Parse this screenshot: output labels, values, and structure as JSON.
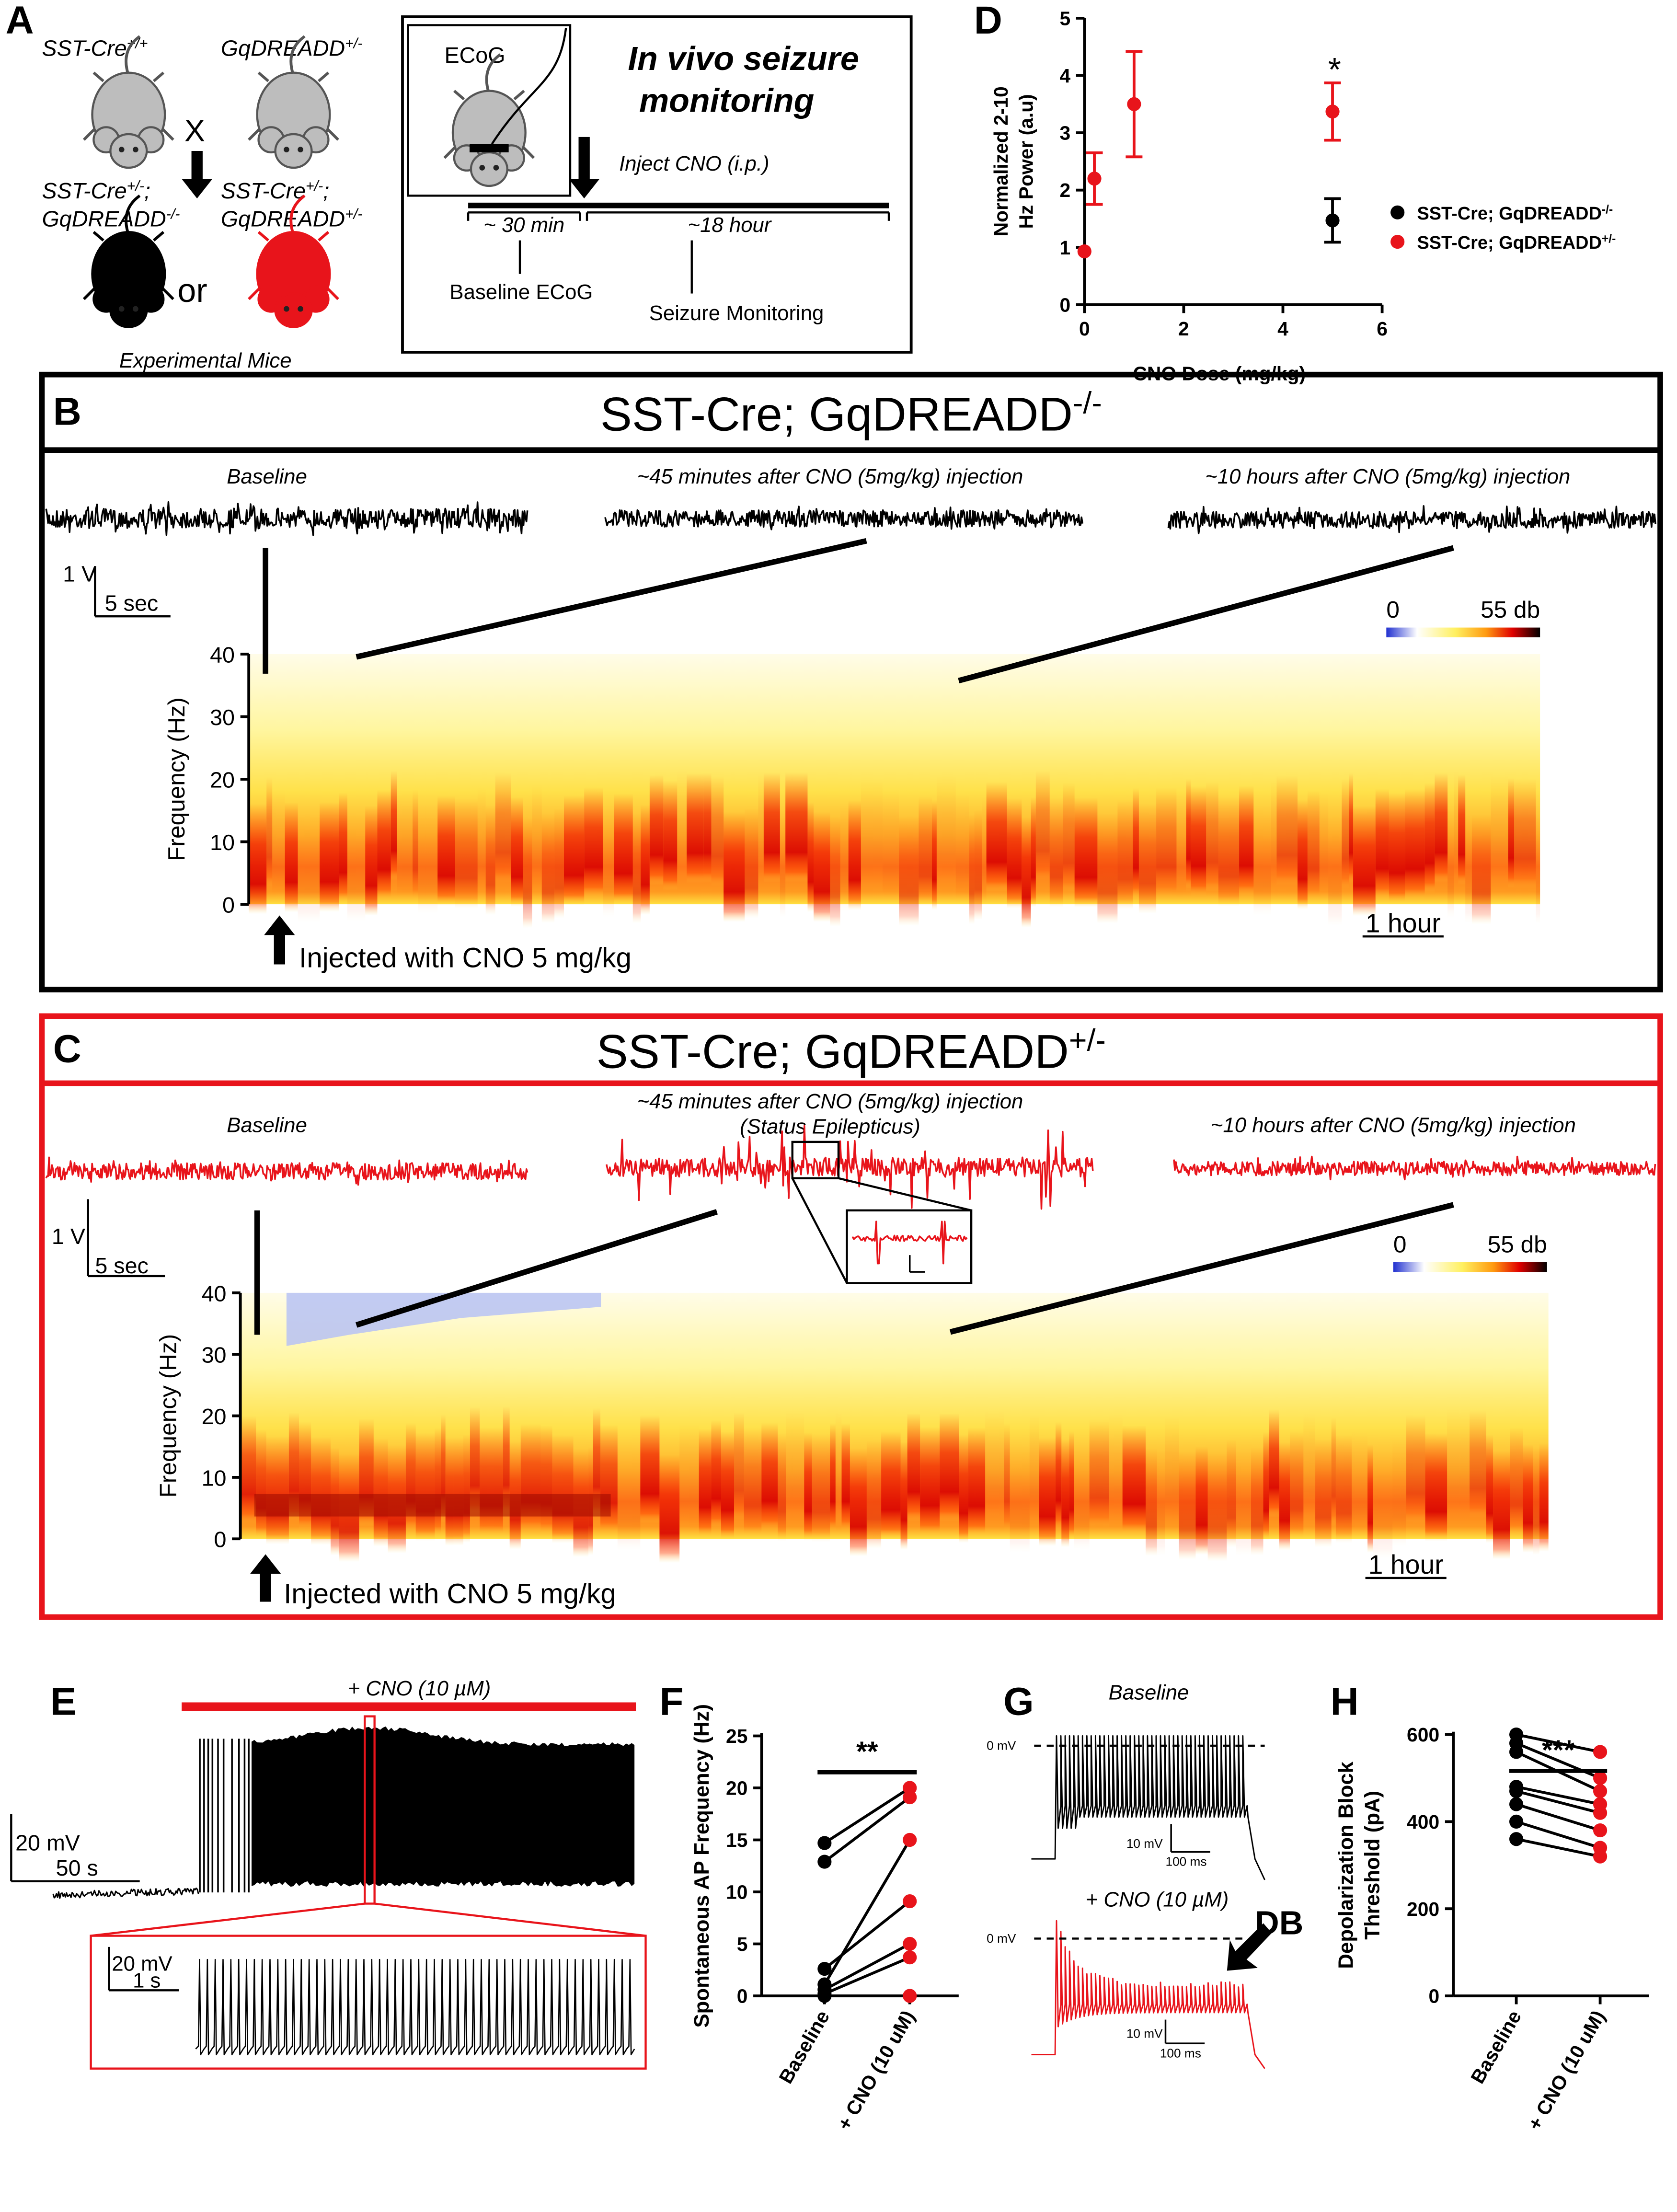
{
  "figure": {
    "letters": {
      "a": "A",
      "b": "B",
      "c": "C",
      "d": "D",
      "e": "E",
      "f": "F",
      "g": "G",
      "h": "H"
    },
    "a": {
      "parent1": [
        "SST-Cre",
        "+/+"
      ],
      "parent2": [
        "GqDREADD",
        "+/-"
      ],
      "cross": "X",
      "child1_line1": [
        "SST-Cre",
        "+/-",
        ";"
      ],
      "child1_line2": [
        "GqDREADD",
        "-/-"
      ],
      "child2_line1": [
        "SST-Cre",
        "+/-",
        ";"
      ],
      "child2_line2": [
        "GqDREADD",
        "+/-"
      ],
      "or": "or",
      "caption": "Experimental Mice",
      "ecog": "ECoG",
      "title_line1": "In vivo seizure",
      "title_line2": "monitoring",
      "inject": "Inject CNO (i.p.)",
      "baseline_duration": "~ 30 min",
      "monitor_duration": "~18 hour",
      "baseline_label": "Baseline ECoG",
      "monitor_label": "Seizure Monitoring"
    },
    "b": {
      "title": [
        "SST-Cre; GqDREADD",
        "-/-"
      ],
      "trace_labels": [
        "Baseline",
        "~45 minutes after CNO (5mg/kg) injection",
        "~10 hours after CNO (5mg/kg) injection"
      ],
      "voltage_scale": "1 V",
      "time_scale": "5 sec",
      "hour_scale": "1 hour",
      "injection": "Injected with CNO 5 mg/kg"
    },
    "c": {
      "title": [
        "SST-Cre; GqDREADD",
        "+/-"
      ],
      "trace_labels": [
        "Baseline",
        "~45 minutes after CNO (5mg/kg) injection",
        "~10 hours after CNO (5mg/kg) injection"
      ],
      "subtitle": "(Status Epilepticus)",
      "voltage_scale": "1 V",
      "time_scale": "5 sec",
      "hour_scale": "1 hour",
      "injection": "Injected with CNO 5 mg/kg"
    },
    "e": {
      "drug": "+ CNO (10 µM)",
      "v_scale": "20 mV",
      "t_scale": "50 s",
      "inset_v_scale": "20 mV",
      "inset_t_scale": "1 s"
    },
    "g": {
      "baseline": "Baseline",
      "drug": "+ CNO (10 µM)",
      "zero1": "0 mV",
      "zero2": "0 mV",
      "v1": "10 mV",
      "t1": "100 ms",
      "v2": "10 mV",
      "t2": "100 ms",
      "db": "DB"
    }
  },
  "chart_data": [
    {
      "type": "heatmap",
      "ylabel": "Frequency (Hz)",
      "ylim": [
        0,
        40
      ],
      "yticks": [
        0,
        10,
        20,
        30,
        40
      ],
      "clim": [
        0,
        55
      ],
      "cticks": [
        0,
        {
          "value": 55,
          "label": "55 db"
        }
      ]
    },
    {
      "type": "heatmap",
      "ylabel": "Frequency (Hz)",
      "ylim": [
        0,
        40
      ],
      "yticks": [
        0,
        10,
        20,
        30,
        40
      ],
      "clim": [
        0,
        55
      ],
      "cticks": [
        0,
        {
          "value": 55,
          "label": "55 db"
        }
      ]
    },
    {
      "type": "errorbar",
      "ylabel": [
        "Normalized 2-10",
        "Hz Power (a.u)"
      ],
      "xlabel": "CNO Dose (mg/kg)",
      "xlim": [
        0,
        6
      ],
      "xticks": [
        0,
        2,
        4,
        6
      ],
      "ylim": [
        0,
        5
      ],
      "yticks": [
        0,
        1,
        2,
        3,
        4,
        5
      ],
      "annotation": "*",
      "series": [
        {
          "name": [
            "SST-Cre; GqDREADD",
            "-/-"
          ],
          "color": "#000000",
          "x": [
            5
          ],
          "values": [
            1.47
          ],
          "errors": [
            0.38
          ]
        },
        {
          "name": [
            "SST-Cre; GqDREADD",
            "+/-"
          ],
          "color": "#e8141b",
          "x": [
            0,
            0.2,
            1,
            5
          ],
          "values": [
            0.93,
            2.2,
            3.5,
            3.37
          ],
          "errors": [
            0,
            0.45,
            0.92,
            0.5
          ]
        }
      ]
    },
    {
      "type": "paired",
      "ylabel": [
        "Spontaneous AP Frequency (Hz)"
      ],
      "categories": [
        "Baseline",
        "+ CNO (10 uM)"
      ],
      "point_colors": [
        "#000000",
        "#e8141b"
      ],
      "ylim": [
        0,
        25
      ],
      "yticks": [
        0,
        5,
        10,
        15,
        20,
        25
      ],
      "annotation": "**",
      "series": [
        {
          "values": [
            14.7,
            20
          ]
        },
        {
          "values": [
            12.9,
            19.1
          ]
        },
        {
          "values": [
            2.6,
            9.1
          ]
        },
        {
          "values": [
            1.1,
            15
          ]
        },
        {
          "values": [
            0.6,
            5
          ]
        },
        {
          "values": [
            0.2,
            3.7
          ]
        },
        {
          "values": [
            0,
            0
          ]
        }
      ]
    },
    {
      "type": "paired",
      "ylabel": [
        "Depolarization Block",
        "Threshold (pA)"
      ],
      "categories": [
        "Baseline",
        "+ CNO (10 uM)"
      ],
      "point_colors": [
        "#000000",
        "#e8141b"
      ],
      "ylim": [
        0,
        600
      ],
      "yticks": [
        0,
        200,
        400,
        600
      ],
      "annotation": "***",
      "series": [
        {
          "values": [
            600,
            560
          ],
          "x": 0
        },
        {
          "values": [
            580,
            500
          ]
        },
        {
          "values": [
            560,
            470
          ]
        },
        {
          "values": [
            480,
            440
          ]
        },
        {
          "values": [
            470,
            420
          ]
        },
        {
          "values": [
            440,
            380
          ]
        },
        {
          "values": [
            400,
            340
          ]
        },
        {
          "values": [
            360,
            320
          ]
        }
      ]
    }
  ]
}
